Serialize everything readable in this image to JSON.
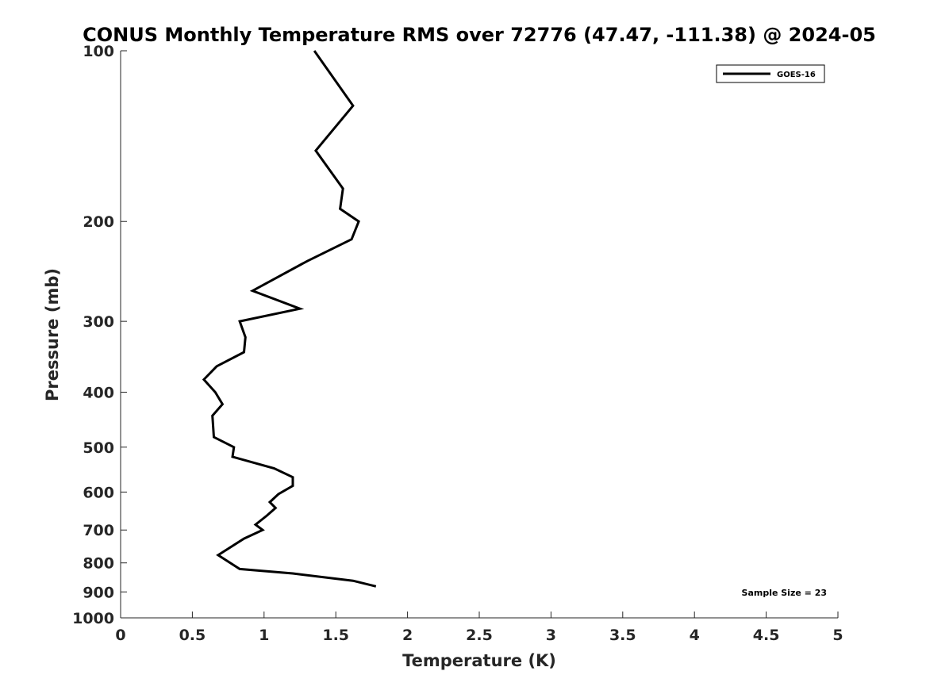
{
  "chart_data": {
    "type": "line",
    "title": "CONUS Monthly Temperature RMS over 72776 (47.47, -111.38) @ 2024-05",
    "xlabel": "Temperature (K)",
    "ylabel": "Pressure (mb)",
    "xlim": [
      0,
      5
    ],
    "ylim": [
      100,
      1000
    ],
    "y_scale": "log",
    "y_reversed": true,
    "x_ticks": [
      "0",
      "0.5",
      "1",
      "1.5",
      "2",
      "2.5",
      "3",
      "3.5",
      "4",
      "4.5",
      "5"
    ],
    "y_ticks": [
      "100",
      "200",
      "300",
      "400",
      "500",
      "600",
      "700",
      "800",
      "900",
      "1000"
    ],
    "grid": false,
    "legend_position": "top-right",
    "annotation": "Sample Size = 23",
    "series": [
      {
        "name": "GOES-16",
        "color": "#000000",
        "points": [
          {
            "x": 1.35,
            "y": 100
          },
          {
            "x": 1.62,
            "y": 125
          },
          {
            "x": 1.36,
            "y": 150
          },
          {
            "x": 1.55,
            "y": 175
          },
          {
            "x": 1.53,
            "y": 190
          },
          {
            "x": 1.66,
            "y": 200
          },
          {
            "x": 1.61,
            "y": 215
          },
          {
            "x": 1.3,
            "y": 235
          },
          {
            "x": 0.92,
            "y": 265
          },
          {
            "x": 1.25,
            "y": 285
          },
          {
            "x": 0.83,
            "y": 300
          },
          {
            "x": 0.87,
            "y": 320
          },
          {
            "x": 0.86,
            "y": 340
          },
          {
            "x": 0.67,
            "y": 360
          },
          {
            "x": 0.58,
            "y": 380
          },
          {
            "x": 0.66,
            "y": 400
          },
          {
            "x": 0.71,
            "y": 420
          },
          {
            "x": 0.64,
            "y": 440
          },
          {
            "x": 0.65,
            "y": 480
          },
          {
            "x": 0.79,
            "y": 500
          },
          {
            "x": 0.78,
            "y": 520
          },
          {
            "x": 1.07,
            "y": 545
          },
          {
            "x": 1.2,
            "y": 565
          },
          {
            "x": 1.2,
            "y": 585
          },
          {
            "x": 1.1,
            "y": 605
          },
          {
            "x": 1.04,
            "y": 625
          },
          {
            "x": 1.08,
            "y": 640
          },
          {
            "x": 1.02,
            "y": 660
          },
          {
            "x": 0.94,
            "y": 685
          },
          {
            "x": 0.99,
            "y": 700
          },
          {
            "x": 0.86,
            "y": 725
          },
          {
            "x": 0.68,
            "y": 775
          },
          {
            "x": 0.83,
            "y": 820
          },
          {
            "x": 1.2,
            "y": 835
          },
          {
            "x": 1.62,
            "y": 860
          },
          {
            "x": 1.78,
            "y": 880
          }
        ]
      }
    ]
  }
}
